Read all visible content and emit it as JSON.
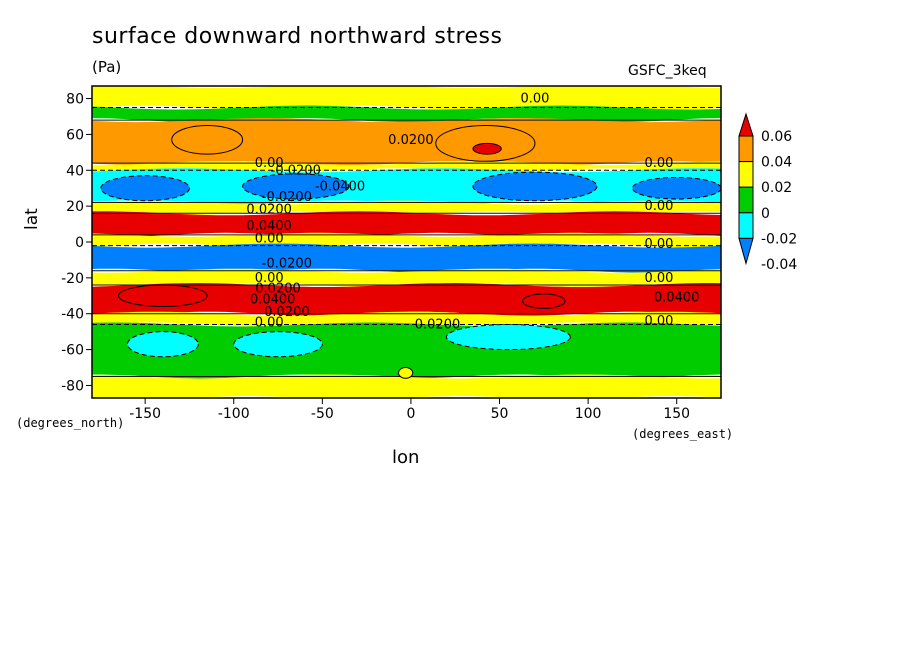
{
  "chart_data": {
    "type": "heatmap",
    "title": "surface downward northward stress",
    "units": "(Pa)",
    "model": "GSFC_3keq",
    "xlabel": "lon",
    "ylabel": "lat",
    "x_unit_label": "(degrees_east)",
    "y_unit_label": "(degrees_north)",
    "xlim": [
      -180,
      175
    ],
    "ylim": [
      -87,
      87
    ],
    "x_ticks": [
      "-150",
      "-100",
      "-50",
      "0",
      "50",
      "100",
      "150"
    ],
    "x_tick_values": [
      -150,
      -100,
      -50,
      0,
      50,
      100,
      150
    ],
    "y_ticks": [
      "80",
      "60",
      "40",
      "20",
      "0",
      "-20",
      "-40",
      "-60",
      "-80"
    ],
    "y_tick_values": [
      80,
      60,
      40,
      20,
      0,
      -20,
      -40,
      -60,
      -80
    ],
    "colorbar": {
      "labels": [
        "0.06",
        "0.04",
        "0.02",
        "0",
        "-0.02",
        "-0.04"
      ],
      "levels": [
        0.06,
        0.04,
        0.02,
        0,
        -0.02,
        -0.04
      ],
      "colors": [
        "#e60000",
        "#ff9900",
        "#ffff00",
        "#00cc00",
        "#00ffff",
        "#0080ff"
      ]
    },
    "bands": [
      {
        "lat_from": 87,
        "lat_to": 75,
        "value": 0.005
      },
      {
        "lat_from": 75,
        "lat_to": 68,
        "value": -0.005
      },
      {
        "lat_from": 68,
        "lat_to": 44,
        "value": 0.025
      },
      {
        "lat_from": 44,
        "lat_to": 40,
        "value": 0.005
      },
      {
        "lat_from": 40,
        "lat_to": 22,
        "value": -0.03
      },
      {
        "lat_from": 22,
        "lat_to": 16,
        "value": 0.01
      },
      {
        "lat_from": 16,
        "lat_to": 4,
        "value": 0.045
      },
      {
        "lat_from": 4,
        "lat_to": -2,
        "value": 0.01
      },
      {
        "lat_from": -2,
        "lat_to": -16,
        "value": -0.045
      },
      {
        "lat_from": -16,
        "lat_to": -24,
        "value": 0.005
      },
      {
        "lat_from": -24,
        "lat_to": -40,
        "value": 0.045
      },
      {
        "lat_from": -40,
        "lat_to": -46,
        "value": 0.005
      },
      {
        "lat_from": -46,
        "lat_to": -75,
        "value": -0.01
      },
      {
        "lat_from": -75,
        "lat_to": -87,
        "value": 0.005
      }
    ],
    "blobs": [
      {
        "lon": -115,
        "lat": 57,
        "rlon": 20,
        "rlat": 8,
        "value": 0.035
      },
      {
        "lon": 42,
        "lat": 55,
        "rlon": 28,
        "rlat": 10,
        "value": 0.035
      },
      {
        "lon": 43,
        "lat": 52,
        "rlon": 8,
        "rlat": 3,
        "value": 0.05
      },
      {
        "lon": -150,
        "lat": 30,
        "rlon": 25,
        "rlat": 7,
        "value": -0.045
      },
      {
        "lon": -65,
        "lat": 31,
        "rlon": 30,
        "rlat": 7,
        "value": -0.045
      },
      {
        "lon": 70,
        "lat": 31,
        "rlon": 35,
        "rlat": 8,
        "value": -0.045
      },
      {
        "lon": 150,
        "lat": 30,
        "rlon": 25,
        "rlat": 6,
        "value": -0.045
      },
      {
        "lon": -140,
        "lat": -30,
        "rlon": 25,
        "rlat": 6,
        "value": 0.05
      },
      {
        "lon": 75,
        "lat": -33,
        "rlon": 12,
        "rlat": 4,
        "value": 0.065
      },
      {
        "lon": -140,
        "lat": -57,
        "rlon": 20,
        "rlat": 7,
        "value": -0.03
      },
      {
        "lon": -75,
        "lat": -57,
        "rlon": 25,
        "rlat": 7,
        "value": -0.03
      },
      {
        "lon": 55,
        "lat": -53,
        "rlon": 35,
        "rlat": 7,
        "value": -0.035
      },
      {
        "lon": -3,
        "lat": -73,
        "rlon": 4,
        "rlat": 3,
        "value": 0.005
      }
    ],
    "contour_labels": [
      {
        "lon": 70,
        "lat": 80,
        "text": "0.00"
      },
      {
        "lon": 0,
        "lat": 57,
        "text": "0.0200"
      },
      {
        "lon": -80,
        "lat": 44,
        "text": "0.00"
      },
      {
        "lon": -65,
        "lat": 40,
        "text": "-0.0200"
      },
      {
        "lon": -40,
        "lat": 31,
        "text": "-0.0400"
      },
      {
        "lon": -70,
        "lat": 25,
        "text": "-0.0200"
      },
      {
        "lon": 140,
        "lat": 44,
        "text": "0.00"
      },
      {
        "lon": -80,
        "lat": 18,
        "text": "0.0200"
      },
      {
        "lon": -80,
        "lat": 9,
        "text": "0.0400"
      },
      {
        "lon": -80,
        "lat": 2,
        "text": "0.00"
      },
      {
        "lon": 140,
        "lat": 20,
        "text": "0.00"
      },
      {
        "lon": 140,
        "lat": -1,
        "text": "0.00"
      },
      {
        "lon": -70,
        "lat": -12,
        "text": "-0.0200"
      },
      {
        "lon": -80,
        "lat": -20,
        "text": "0.00"
      },
      {
        "lon": -75,
        "lat": -26,
        "text": "0.0200"
      },
      {
        "lon": -78,
        "lat": -32,
        "text": "0.0400"
      },
      {
        "lon": 140,
        "lat": -20,
        "text": "0.00"
      },
      {
        "lon": 150,
        "lat": -31,
        "text": "0.0400"
      },
      {
        "lon": -70,
        "lat": -39,
        "text": "0.0200"
      },
      {
        "lon": -80,
        "lat": -45,
        "text": "0.00"
      },
      {
        "lon": 15,
        "lat": -46,
        "text": "0.0200"
      },
      {
        "lon": 140,
        "lat": -44,
        "text": "0.00"
      }
    ]
  }
}
